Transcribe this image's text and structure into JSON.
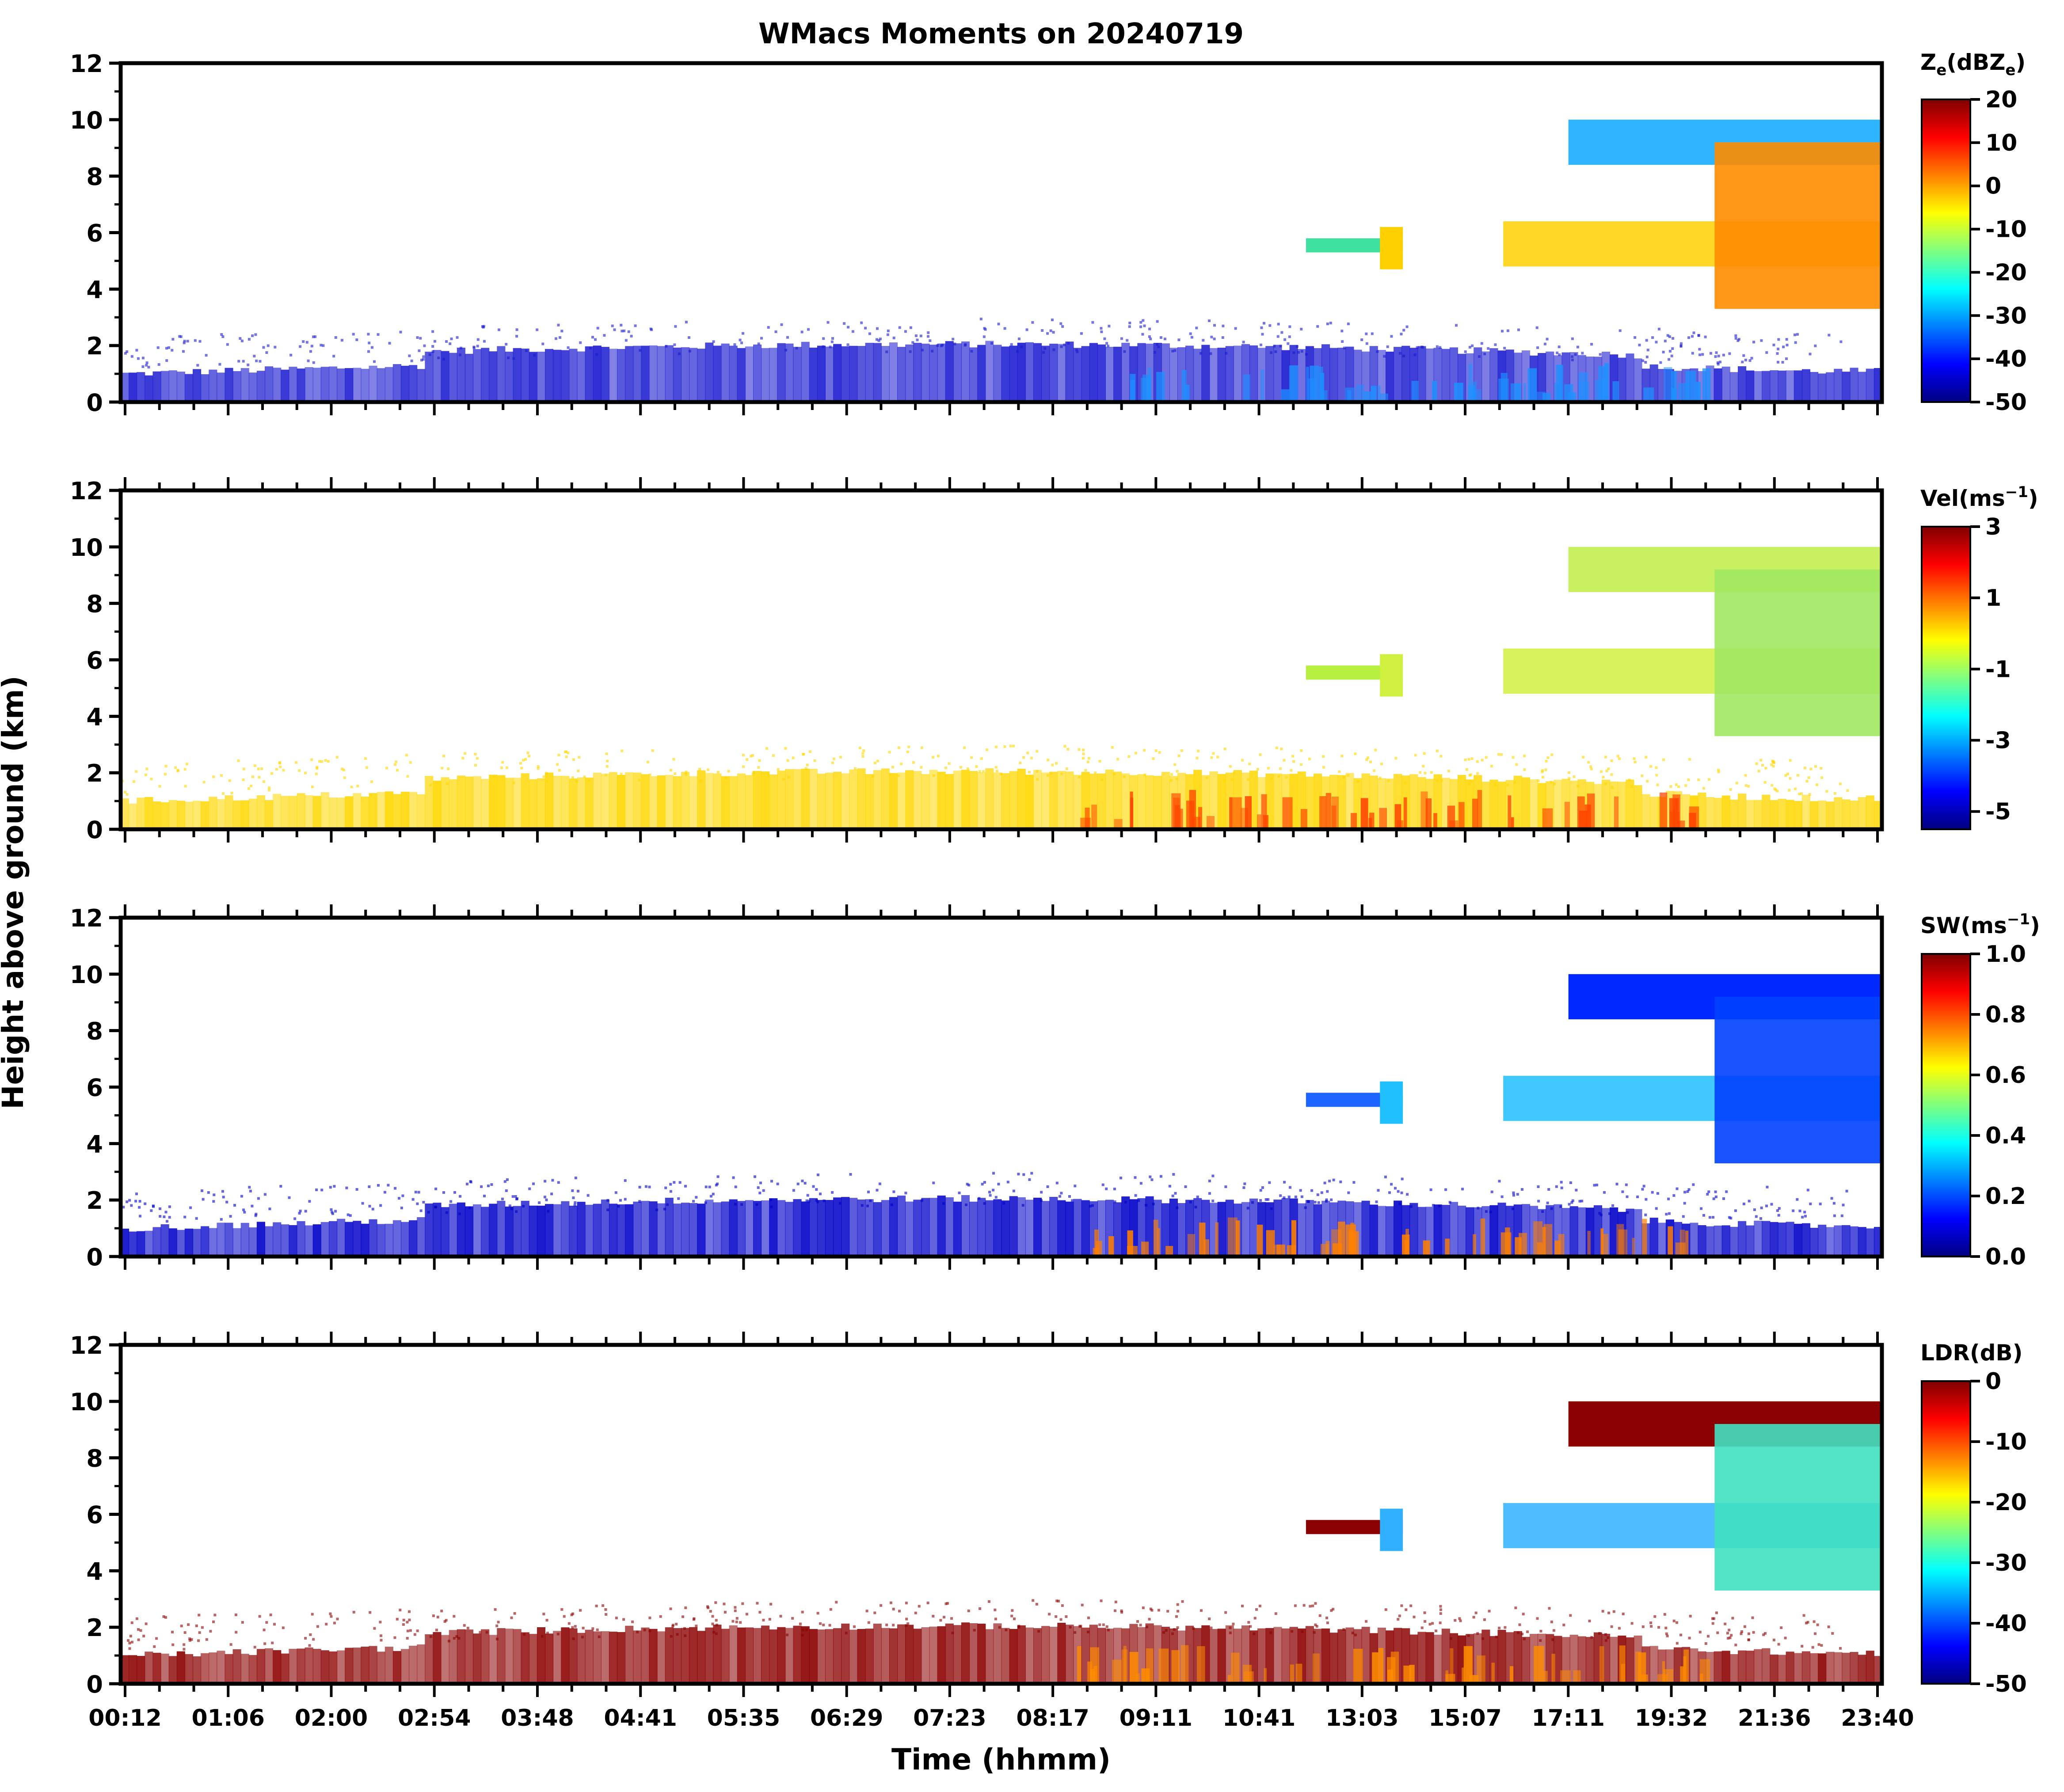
{
  "chart_data": {
    "type": "heatmap",
    "title": "WMacs Moments on 20240719",
    "xlabel": "Time (hhmm)",
    "ylabel": "Height above ground (km)",
    "x_tick_labels": [
      "00:12",
      "01:06",
      "02:00",
      "02:54",
      "03:48",
      "04:41",
      "05:35",
      "06:29",
      "07:23",
      "08:17",
      "09:11",
      "10:41",
      "13:03",
      "15:07",
      "17:11",
      "19:32",
      "21:36",
      "23:40"
    ],
    "ylim": [
      0,
      12
    ],
    "y_ticks": [
      0,
      2,
      4,
      6,
      8,
      10,
      12
    ],
    "colormap": "jet",
    "colormap_stops": [
      "#00007f",
      "#0000ff",
      "#007fff",
      "#00ffff",
      "#7fff7f",
      "#ffff00",
      "#ff7f00",
      "#ff0000",
      "#7f0000"
    ],
    "panels": [
      {
        "name": "reflectivity",
        "colorbar_label": "Z_e(dBZ_e)",
        "colorbar_label_main": "Z",
        "colorbar_label_sub": "e",
        "colorbar_label_unit_open": "(dBZ",
        "colorbar_label_unit_sub": "e",
        "colorbar_label_unit_close": ")",
        "clim": [
          -50,
          20
        ],
        "colorbar_ticks": [
          "20",
          "10",
          "0",
          "-10",
          "-20",
          "-30",
          "-40",
          "-50"
        ],
        "echo_colors": {
          "boundary_layer": "#1a1ad0",
          "boundary_layer_core": "#1e90ff",
          "mid_cloud": "#40e0a0",
          "high_cloud": "#2fb4ff",
          "convective_core": "#ff8c00",
          "mid_core": "#ffd000"
        }
      },
      {
        "name": "velocity",
        "colorbar_label": "Vel(ms^-1)",
        "colorbar_label_main": "Vel(ms",
        "colorbar_label_sup": "−1",
        "colorbar_label_close": ")",
        "clim": [
          -5.5,
          3
        ],
        "colorbar_ticks": [
          "3",
          "1",
          "-1",
          "-3",
          "-5"
        ],
        "echo_colors": {
          "boundary_layer": "#ffd700",
          "boundary_layer_core": "#ff4500",
          "mid_cloud": "#b8f040",
          "high_cloud": "#c8f060",
          "convective_core": "#a0e860",
          "mid_core": "#d0f040"
        }
      },
      {
        "name": "spectrum_width",
        "colorbar_label": "SW(ms^-1)",
        "colorbar_label_main": "SW(ms",
        "colorbar_label_sup": "−1",
        "colorbar_label_close": ")",
        "clim": [
          0,
          1
        ],
        "colorbar_ticks": [
          "1.0",
          "0.8",
          "0.6",
          "0.4",
          "0.2",
          "0.0"
        ],
        "echo_colors": {
          "boundary_layer": "#0000c8",
          "boundary_layer_core": "#ff8000",
          "mid_cloud": "#1e64ff",
          "high_cloud": "#0028ff",
          "convective_core": "#0040ff",
          "mid_core": "#20c0ff"
        }
      },
      {
        "name": "ldr",
        "colorbar_label": "LDR(dB)",
        "colorbar_label_main": "LDR(dB)",
        "clim": [
          -50,
          0
        ],
        "colorbar_ticks": [
          "0",
          "-10",
          "-20",
          "-30",
          "-40",
          "-50"
        ],
        "echo_colors": {
          "boundary_layer": "#8b0000",
          "boundary_layer_core": "#ff8c00",
          "mid_cloud": "#8b0000",
          "high_cloud": "#8b0000",
          "convective_core": "#40e0c0",
          "mid_core": "#30b0ff"
        }
      }
    ]
  }
}
